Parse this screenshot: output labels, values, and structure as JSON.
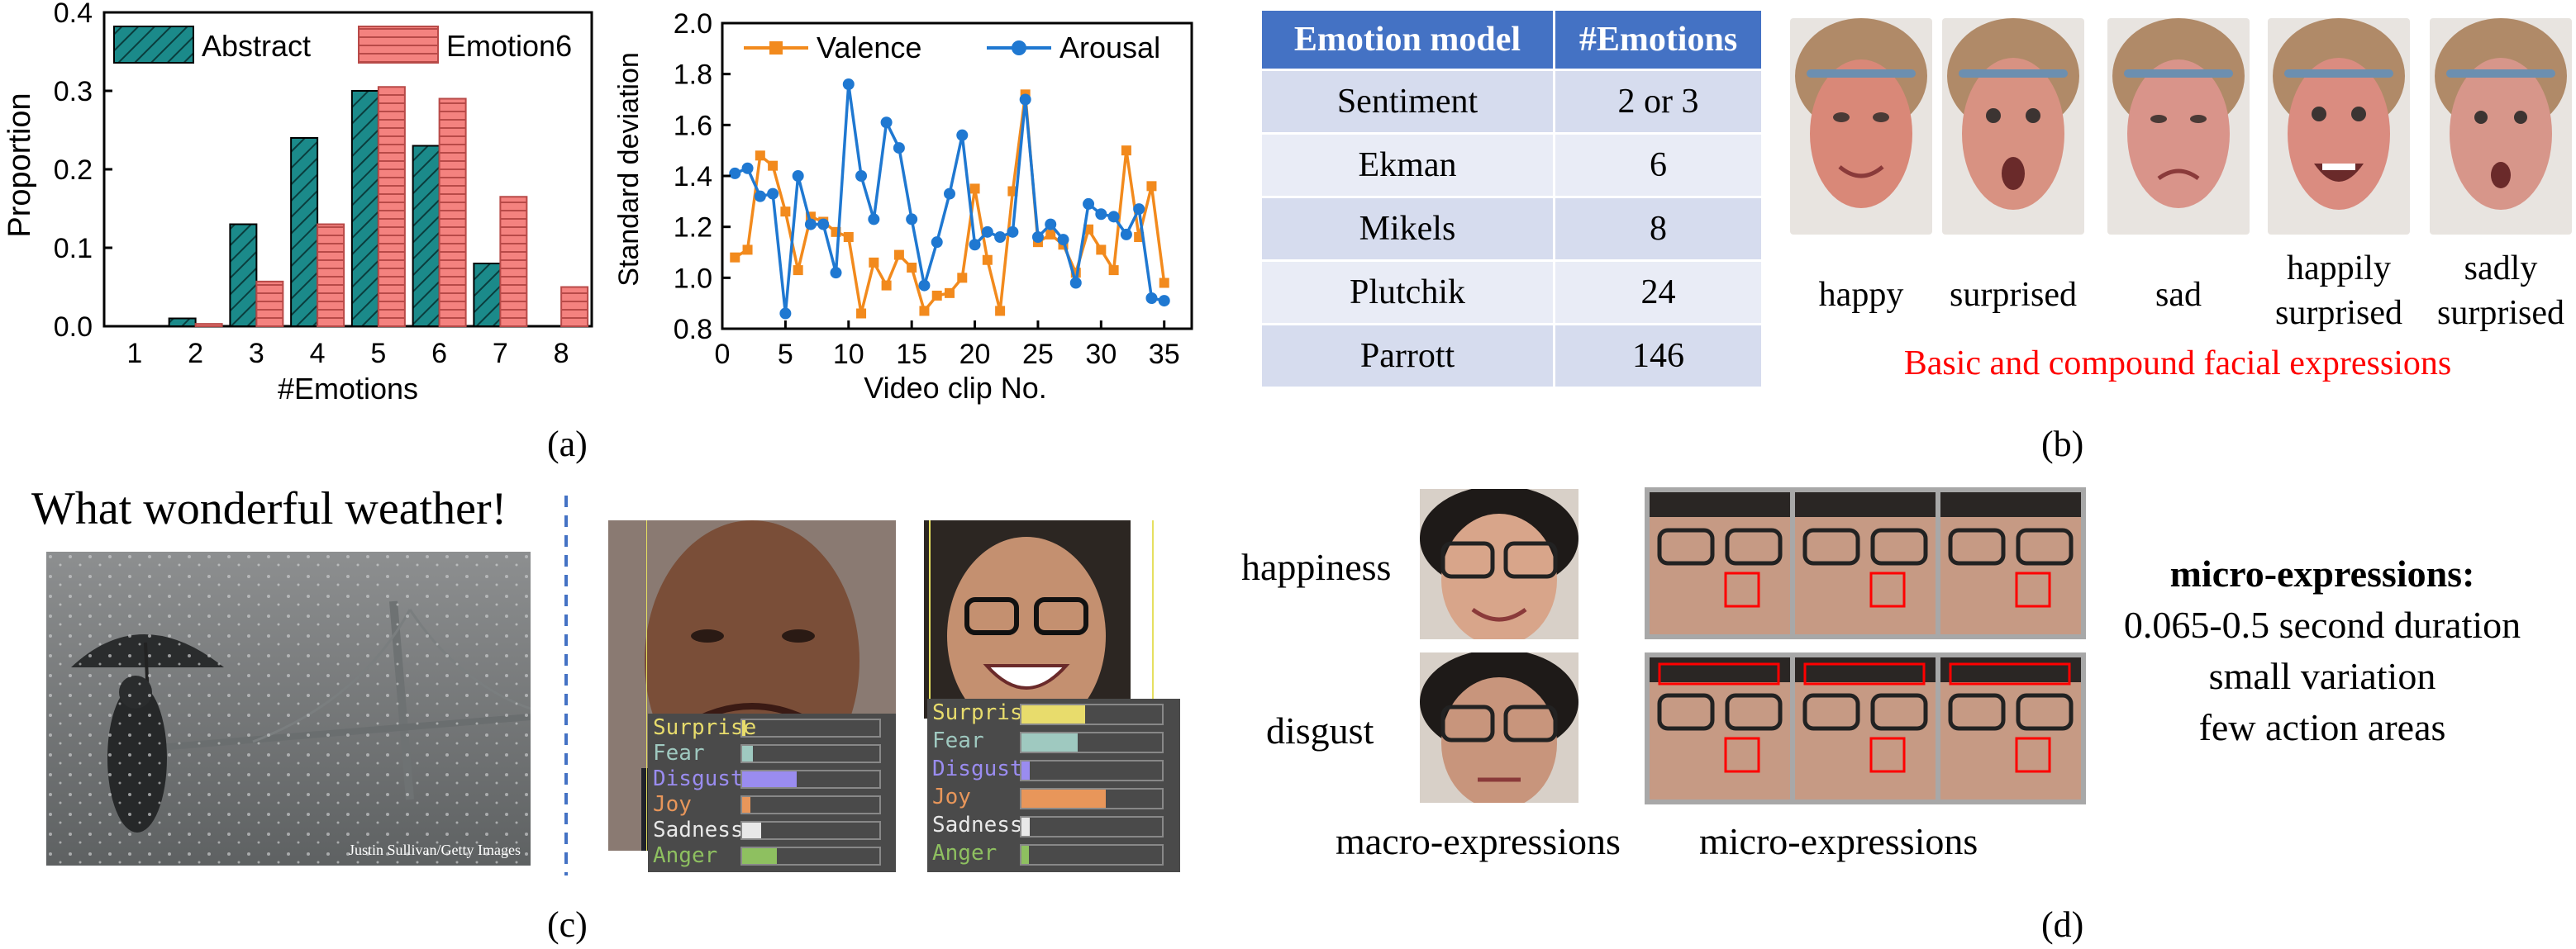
{
  "panel_labels": {
    "a": "(a)",
    "b": "(b)",
    "c": "(c)",
    "d": "(d)"
  },
  "chart_data": [
    {
      "type": "bar",
      "xlabel": "#Emotions",
      "ylabel": "Proportion",
      "categories": [
        "1",
        "2",
        "3",
        "4",
        "5",
        "6",
        "7",
        "8"
      ],
      "ylim": [
        0,
        0.4
      ],
      "yticks": [
        "0.0",
        "0.1",
        "0.2",
        "0.3",
        "0.4"
      ],
      "legend_position": "top",
      "series": [
        {
          "name": "Abstract",
          "color": "#1b8a8a",
          "values": [
            0.0,
            0.01,
            0.13,
            0.24,
            0.3,
            0.23,
            0.08,
            0.0
          ]
        },
        {
          "name": "Emotion6",
          "color": "#f4827f",
          "values": [
            0.0,
            0.003,
            0.057,
            0.13,
            0.305,
            0.29,
            0.165,
            0.05
          ]
        }
      ]
    },
    {
      "type": "line",
      "xlabel": "Video clip No.",
      "ylabel": "Standard deviation",
      "xlim": [
        0,
        36
      ],
      "ylim": [
        0.8,
        2.0
      ],
      "xticks": [
        "0",
        "5",
        "10",
        "15",
        "20",
        "25",
        "30",
        "35"
      ],
      "yticks": [
        "0.8",
        "1.0",
        "1.2",
        "1.4",
        "1.6",
        "1.8",
        "2.0"
      ],
      "legend_position": "top",
      "x": [
        1,
        2,
        3,
        4,
        5,
        6,
        7,
        8,
        9,
        10,
        11,
        12,
        13,
        14,
        15,
        16,
        17,
        18,
        19,
        20,
        21,
        22,
        23,
        24,
        25,
        26,
        27,
        28,
        29,
        30,
        31,
        32,
        33,
        34,
        35,
        36
      ],
      "series": [
        {
          "name": "Valence",
          "color": "#f28a1d",
          "marker": "square",
          "values": [
            1.08,
            1.11,
            1.48,
            1.44,
            1.26,
            1.03,
            1.24,
            1.22,
            1.18,
            1.16,
            0.86,
            1.06,
            0.97,
            1.09,
            1.04,
            0.87,
            0.93,
            0.94,
            1.0,
            1.35,
            1.07,
            0.87,
            1.34,
            1.72,
            1.14,
            1.17,
            1.13,
            1.02,
            1.19,
            1.11,
            1.03,
            1.5,
            1.16,
            1.36,
            0.98,
            null
          ]
        },
        {
          "name": "Arousal",
          "color": "#1f78d1",
          "marker": "circle",
          "values": [
            1.41,
            1.43,
            1.32,
            1.33,
            0.86,
            1.4,
            1.21,
            1.21,
            1.02,
            1.76,
            1.4,
            1.23,
            1.61,
            1.51,
            1.23,
            0.97,
            1.14,
            1.33,
            1.56,
            1.13,
            1.18,
            1.16,
            1.18,
            1.7,
            1.16,
            1.21,
            1.15,
            0.98,
            1.29,
            1.25,
            1.24,
            1.17,
            1.27,
            0.92,
            0.91,
            null
          ]
        }
      ]
    }
  ],
  "table": {
    "headers": [
      "Emotion model",
      "#Emotions"
    ],
    "rows": [
      [
        "Sentiment",
        "2 or 3"
      ],
      [
        "Ekman",
        "6"
      ],
      [
        "Mikels",
        "8"
      ],
      [
        "Plutchik",
        "24"
      ],
      [
        "Parrott",
        "146"
      ]
    ]
  },
  "faces_b": {
    "labels": [
      "happy",
      "surprised",
      "sad",
      "happily surprised",
      "sadly surprised"
    ],
    "caption": "Basic and compound facial expressions",
    "caption_color": "#ff0000"
  },
  "panel_c": {
    "quote": "What wonderful weather!",
    "credit": "Justin Sullivan/Getty Images",
    "emotions": [
      "Surprise",
      "Fear",
      "Disgust",
      "Joy",
      "Sadness",
      "Anger"
    ],
    "emotion_colors": [
      "#e8dc6c",
      "#9fc9c0",
      "#9a8cf0",
      "#e8965a",
      "#e8e8e8",
      "#8ec060"
    ],
    "face1_levels": [
      0.0,
      0.08,
      0.4,
      0.06,
      0.14,
      0.25
    ],
    "face2_levels": [
      0.45,
      0.4,
      0.06,
      0.6,
      0.06,
      0.05
    ]
  },
  "panel_d": {
    "row_labels": [
      "happiness",
      "disgust"
    ],
    "col_labels": [
      "macro-expressions",
      "micro-expressions"
    ],
    "micro_title": "micro-expressions:",
    "micro_lines": [
      "0.065-0.5 second duration",
      "small variation",
      "few action areas"
    ]
  }
}
